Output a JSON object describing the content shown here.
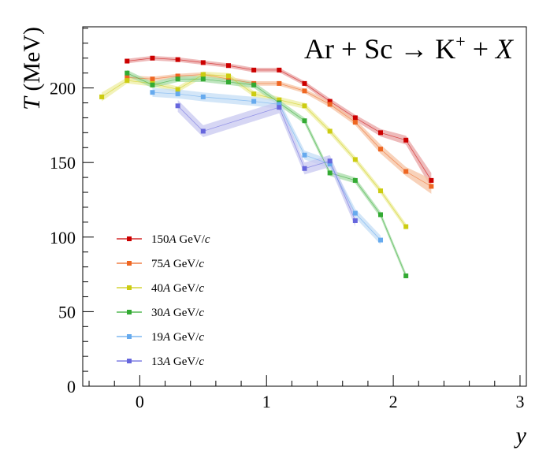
{
  "chart_data": {
    "type": "line",
    "title_parts": {
      "lhs": "Ar + Sc → K",
      "sup": "+",
      "rhs_pre": " + ",
      "rhs_it": "X"
    },
    "xlabel": "y",
    "ylabel_it": "T",
    "ylabel_rest": " (MeV)",
    "xlim": [
      -0.45,
      3.05
    ],
    "ylim": [
      0,
      241
    ],
    "x_ticks": [
      0,
      1,
      2,
      3
    ],
    "x_tick_labels": [
      "0",
      "1",
      "2",
      "3"
    ],
    "y_ticks": [
      0,
      50,
      100,
      150,
      200
    ],
    "y_tick_labels": [
      "0",
      "50",
      "100",
      "150",
      "200"
    ],
    "legend_placement": "lower-left",
    "series": [
      {
        "key": "s150",
        "energy": "150",
        "unit": " GeV/",
        "c": "c",
        "color": "#cc0000",
        "band": "#e8a3a3",
        "x": [
          -0.1,
          0.1,
          0.3,
          0.5,
          0.7,
          0.9,
          1.1,
          1.3,
          1.5,
          1.7,
          1.9,
          2.1,
          2.3
        ],
        "y": [
          218,
          220,
          219,
          217,
          215,
          212,
          212,
          203,
          191,
          180,
          170,
          165,
          138
        ],
        "err": [
          1.5,
          1.5,
          1.5,
          1.5,
          1.5,
          1.5,
          1.5,
          1.5,
          2,
          2,
          2.5,
          3,
          5
        ]
      },
      {
        "key": "s75",
        "energy": "75",
        "unit": " GeV/",
        "c": "c",
        "color": "#ee6622",
        "band": "#f6c3a3",
        "x": [
          -0.1,
          0.1,
          0.3,
          0.5,
          0.7,
          0.9,
          1.1,
          1.3,
          1.5,
          1.7,
          1.9,
          2.1,
          2.3
        ],
        "y": [
          207,
          206,
          208,
          209,
          206,
          203,
          203,
          198,
          189,
          177,
          159,
          144,
          134
        ],
        "err": [
          1.5,
          1.5,
          1.5,
          1.5,
          1.5,
          1.5,
          1.5,
          1.5,
          2,
          2,
          3,
          3,
          5
        ]
      },
      {
        "key": "s40",
        "energy": "40",
        "unit": " GeV/",
        "c": "c",
        "color": "#cccc11",
        "band": "#eeeea0",
        "x": [
          -0.3,
          -0.1,
          0.1,
          0.3,
          0.5,
          0.7,
          0.9,
          1.1,
          1.3,
          1.5,
          1.7,
          1.9,
          2.1
        ],
        "y": [
          194,
          205,
          203,
          199,
          209,
          208,
          196,
          192,
          188,
          171,
          152,
          131,
          107
        ],
        "err": [
          3,
          2,
          2,
          2,
          2,
          2,
          2,
          2,
          2,
          2,
          2,
          2,
          2
        ]
      },
      {
        "key": "s30",
        "energy": "30",
        "unit": " GeV/",
        "c": "c",
        "color": "#33aa33",
        "band": "#a8dca8",
        "x": [
          -0.1,
          0.1,
          0.3,
          0.5,
          0.7,
          0.9,
          1.1,
          1.3,
          1.5,
          1.7,
          1.9,
          2.1
        ],
        "y": [
          210,
          202,
          206,
          206,
          204,
          202,
          190,
          178,
          143,
          138,
          115,
          74
        ],
        "err": [
          2,
          2,
          2,
          2,
          2,
          2,
          2,
          2,
          2,
          2,
          2,
          2
        ]
      },
      {
        "key": "s19",
        "energy": "19",
        "unit": " GeV/",
        "c": "c",
        "color": "#66aaee",
        "band": "#c4ddf6",
        "x": [
          0.1,
          0.3,
          0.5,
          0.9,
          1.1,
          1.3,
          1.5,
          1.7,
          1.9
        ],
        "y": [
          197,
          196,
          194,
          191,
          189,
          155,
          149,
          116,
          98
        ],
        "err": [
          3,
          3,
          3,
          3,
          3,
          3,
          3,
          3,
          3
        ]
      },
      {
        "key": "s13",
        "energy": "13",
        "unit": " GeV/",
        "c": "c",
        "color": "#6666dd",
        "band": "#c8c8f0",
        "x": [
          0.3,
          0.5,
          1.1,
          1.3,
          1.5,
          1.7
        ],
        "y": [
          188,
          171,
          187,
          146,
          151,
          111
        ],
        "err": [
          4,
          4,
          4,
          4,
          4,
          4
        ]
      }
    ]
  }
}
